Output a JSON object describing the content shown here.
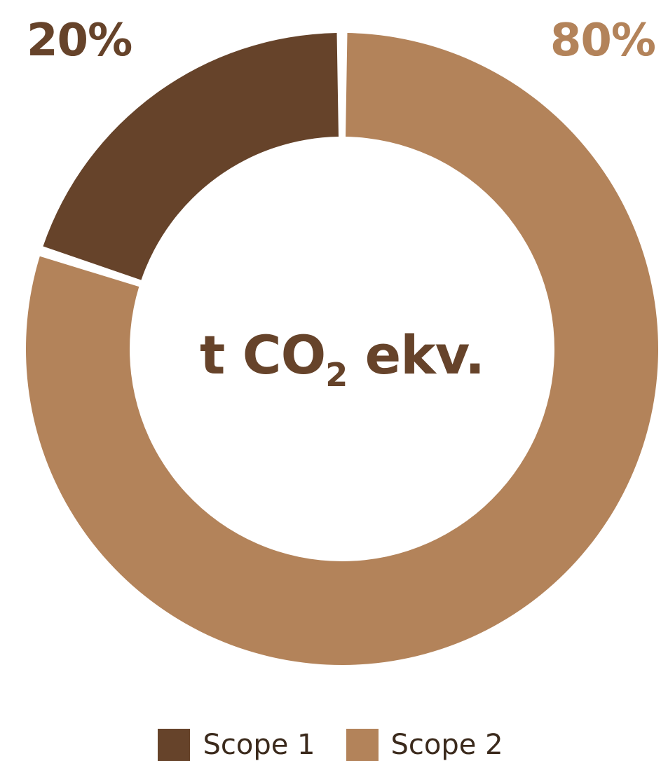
{
  "colors": {
    "scope1": "#66432a",
    "scope2": "#b3835a",
    "text_dark": "#66432a"
  },
  "chart_data": {
    "type": "pie",
    "variant": "donut",
    "title": "",
    "center_label": {
      "main": "t CO",
      "subscript": "2",
      "suffix": " ekv."
    },
    "series": [
      {
        "name": "Scope 1",
        "value": 20,
        "label": "20%",
        "color": "#66432a"
      },
      {
        "name": "Scope 2",
        "value": 80,
        "label": "80%",
        "color": "#b3835a"
      }
    ],
    "legend_position": "bottom",
    "start_angle": "12 o'clock",
    "direction": "clockwise, Scope 2 first"
  }
}
